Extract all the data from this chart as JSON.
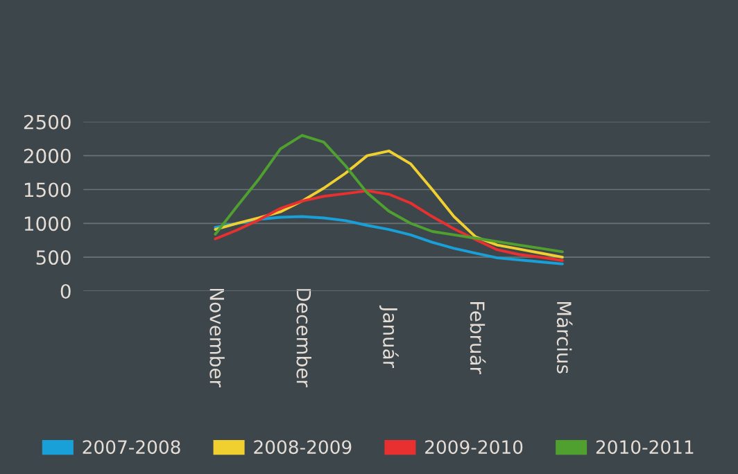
{
  "chart_data": {
    "type": "line",
    "categories": [
      "November",
      null,
      null,
      null,
      "December",
      null,
      null,
      null,
      "Január",
      null,
      null,
      null,
      "Február",
      null,
      null,
      null,
      "Március"
    ],
    "ylim": [
      0,
      2500
    ],
    "yticks": [
      0,
      500,
      1000,
      1500,
      2000,
      2500
    ],
    "grid": "y",
    "legend": "bottom",
    "marker": "none",
    "line_style": "solid",
    "series": [
      {
        "name": "2007-2008",
        "color": "#1aa0d8",
        "values": [
          940,
          1000,
          1060,
          1090,
          1100,
          1080,
          1040,
          970,
          910,
          830,
          720,
          630,
          560,
          490,
          460,
          430,
          400
        ]
      },
      {
        "name": "2008-2009",
        "color": "#f0d030",
        "values": [
          910,
          1000,
          1080,
          1170,
          1330,
          1520,
          1740,
          2000,
          2070,
          1880,
          1500,
          1100,
          800,
          680,
          620,
          560,
          500
        ]
      },
      {
        "name": "2009-2010",
        "color": "#e83030",
        "values": [
          770,
          900,
          1050,
          1220,
          1330,
          1400,
          1440,
          1480,
          1430,
          1300,
          1100,
          920,
          760,
          610,
          540,
          500,
          450
        ]
      },
      {
        "name": "2010-2011",
        "color": "#50a030",
        "values": [
          840,
          1250,
          1650,
          2100,
          2300,
          2200,
          1850,
          1450,
          1180,
          1000,
          880,
          830,
          780,
          730,
          680,
          630,
          580
        ]
      }
    ]
  }
}
